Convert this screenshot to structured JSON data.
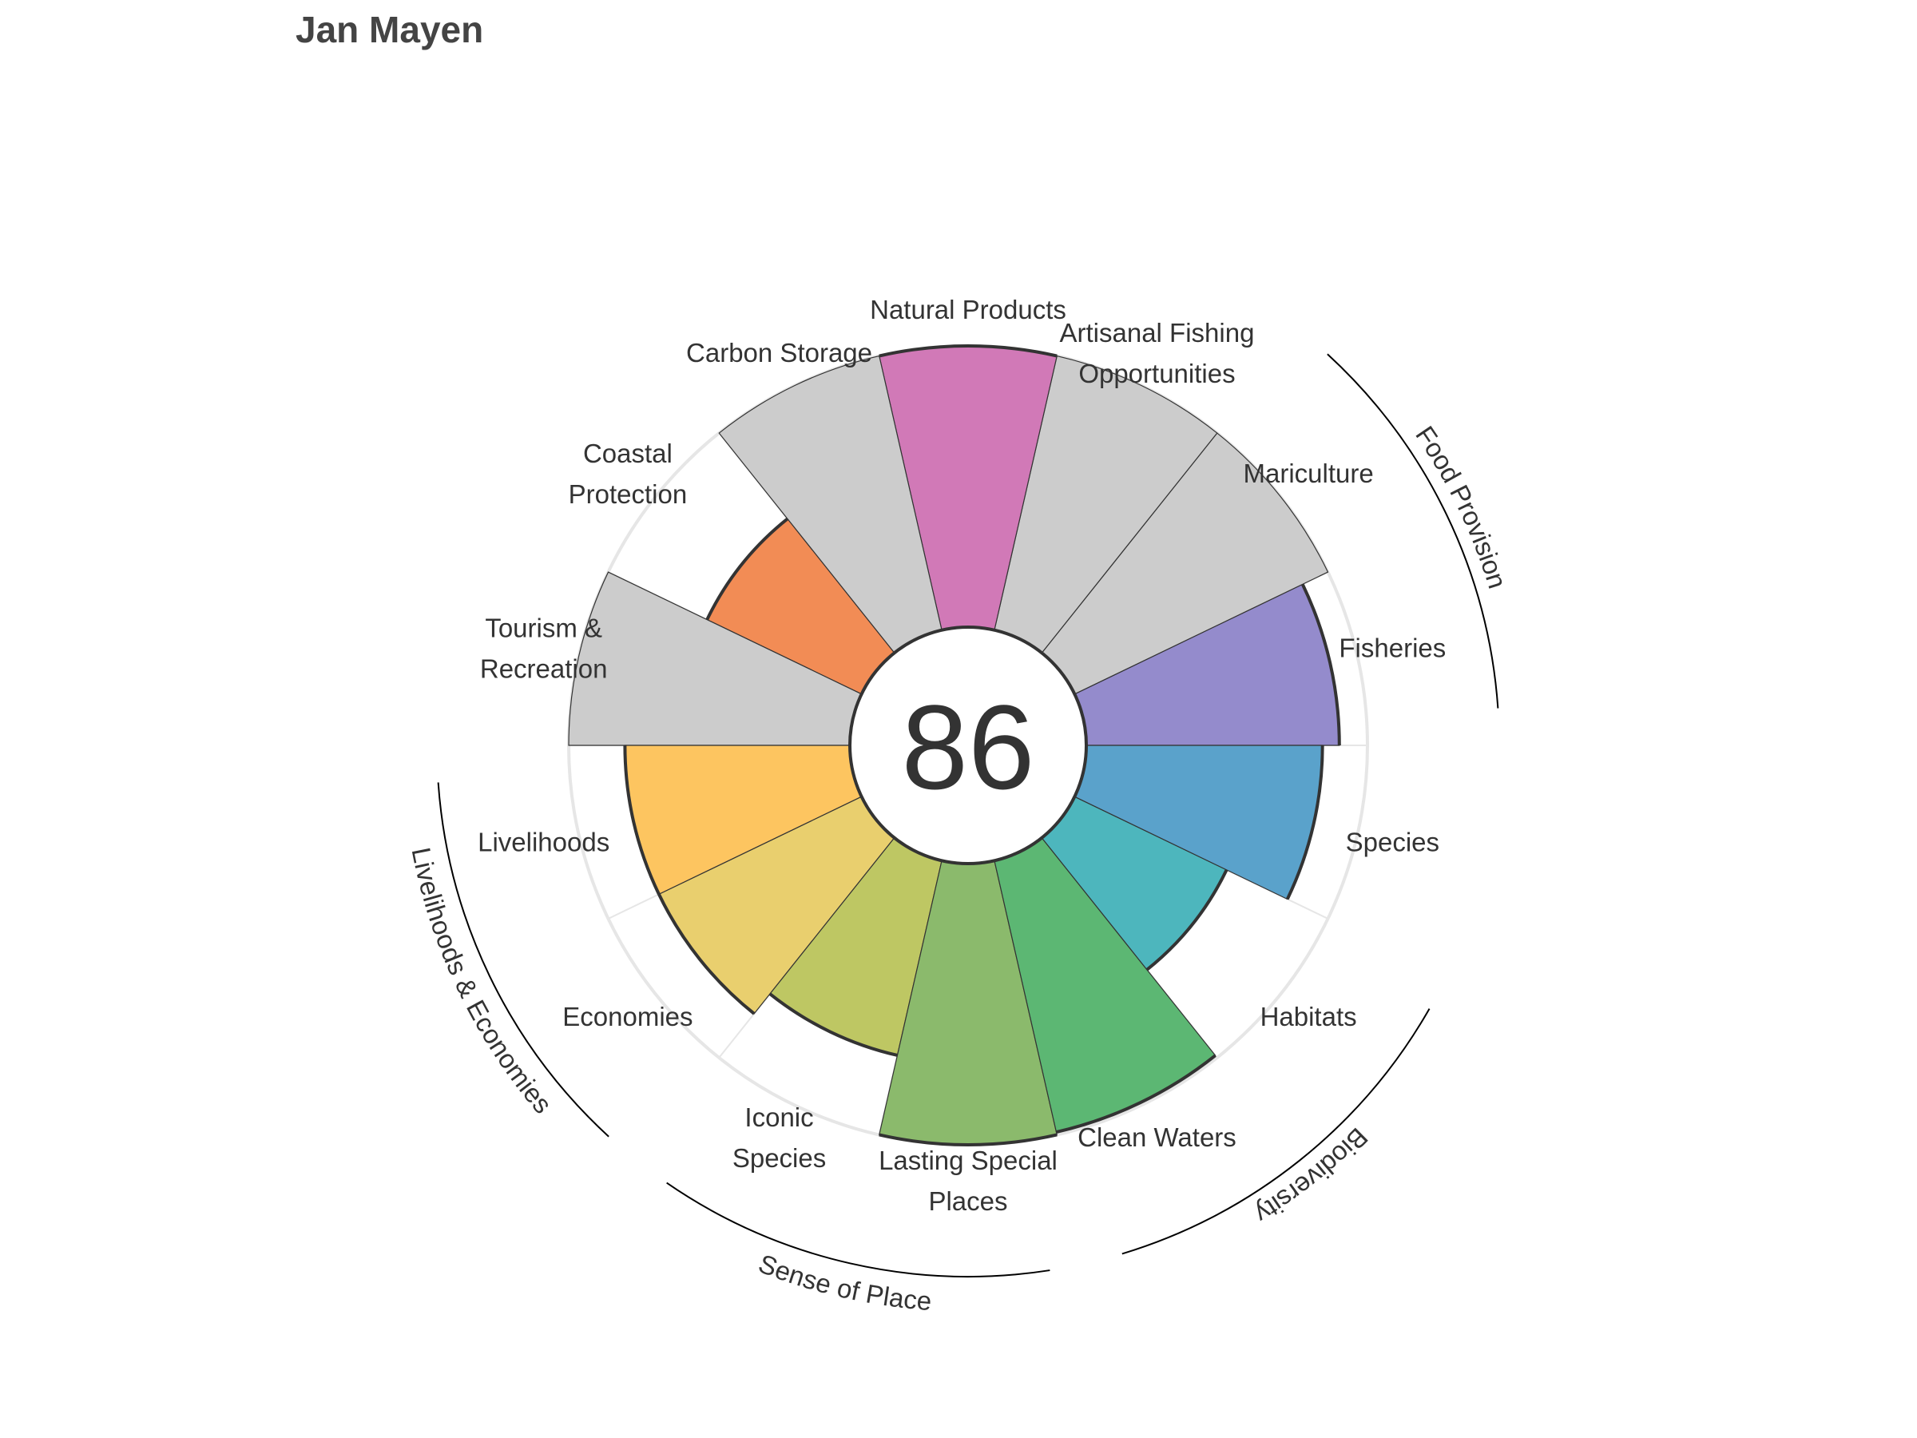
{
  "title": "Jan Mayen",
  "chart_data": {
    "type": "polar-bar",
    "title": "Jan Mayen",
    "center_score": "86",
    "rmax": 100,
    "goals": [
      {
        "label": [
          "Fisheries"
        ],
        "value": 90,
        "color": "#948bcc",
        "na": false
      },
      {
        "label": [
          "Mariculture"
        ],
        "value": 100,
        "color": "#cccccc",
        "na": true
      },
      {
        "label": [
          "Artisanal Fishing",
          "Opportunities"
        ],
        "value": 100,
        "color": "#cccccc",
        "na": true
      },
      {
        "label": [
          "Natural Products"
        ],
        "value": 100,
        "color": "#d179b7",
        "na": false
      },
      {
        "label": [
          "Carbon Storage"
        ],
        "value": 100,
        "color": "#cccccc",
        "na": true
      },
      {
        "label": [
          "Coastal",
          "Protection"
        ],
        "value": 61,
        "color": "#f28c55",
        "na": false
      },
      {
        "label": [
          "Tourism &",
          "Recreation"
        ],
        "value": 100,
        "color": "#cccccc",
        "na": true
      },
      {
        "label": [
          "Livelihoods"
        ],
        "value": 80,
        "color": "#fdc560",
        "na": false
      },
      {
        "label": [
          "Economies"
        ],
        "value": 80,
        "color": "#e9cf6e",
        "na": false
      },
      {
        "label": [
          "Iconic",
          "Species"
        ],
        "value": 71,
        "color": "#bec763",
        "na": false
      },
      {
        "label": [
          "Lasting Special",
          "Places"
        ],
        "value": 100,
        "color": "#8bba6c",
        "na": false
      },
      {
        "label": [
          "Clean Waters"
        ],
        "value": 99,
        "color": "#5cb773",
        "na": false
      },
      {
        "label": [
          "Habitats"
        ],
        "value": 60,
        "color": "#4db6bd",
        "na": false
      },
      {
        "label": [
          "Species"
        ],
        "value": 84,
        "color": "#5aa2cb",
        "na": false
      }
    ],
    "groups": [
      {
        "label": "Food Provision"
      },
      {
        "label": "Biodiversity"
      },
      {
        "label": "Sense of Place"
      },
      {
        "label": "Livelihoods & Economies"
      }
    ]
  }
}
